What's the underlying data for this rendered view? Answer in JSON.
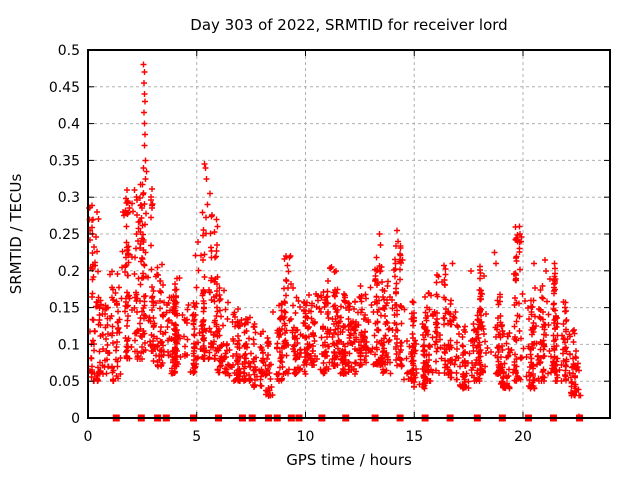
{
  "chart_data": {
    "type": "scatter",
    "title": "Day 303 of 2022, SRMTID for receiver lord",
    "xlabel": "GPS time / hours",
    "ylabel": "SRMTID / TECUs",
    "xlim": [
      0,
      24
    ],
    "ylim": [
      0,
      0.5
    ],
    "xticks": [
      0,
      5,
      10,
      15,
      20
    ],
    "xticklabels": [
      "0",
      "5",
      "10",
      "15",
      "20"
    ],
    "yticks": [
      0,
      0.05,
      0.1,
      0.15,
      0.2,
      0.25,
      0.3,
      0.35,
      0.4,
      0.45,
      0.5
    ],
    "yticklabels": [
      "0",
      "0.05",
      "0.1",
      "0.15",
      "0.2",
      "0.25",
      "0.3",
      "0.35",
      "0.4",
      "0.45",
      "0.5"
    ],
    "grid": true,
    "legend": "none",
    "marker": "plus",
    "point_color": "#ff0000",
    "grid_color": "#b0b0b0",
    "border_color": "#000000",
    "seed": 12345,
    "density_bins_comment": "Each bin is [hour_start, hour_end, y_min, y_max, approx_point_count] read from the plot; the dense red point cloud is regenerated from these observed envelopes.",
    "density_bins": [
      [
        0.0,
        0.5,
        0.05,
        0.29,
        55
      ],
      [
        0.5,
        1.0,
        0.06,
        0.16,
        45
      ],
      [
        1.0,
        1.5,
        0.05,
        0.2,
        45
      ],
      [
        1.5,
        2.0,
        0.08,
        0.31,
        60
      ],
      [
        2.0,
        2.5,
        0.08,
        0.33,
        60
      ],
      [
        2.5,
        3.0,
        0.09,
        0.33,
        65
      ],
      [
        3.0,
        3.5,
        0.07,
        0.22,
        50
      ],
      [
        3.5,
        4.0,
        0.06,
        0.17,
        45
      ],
      [
        4.0,
        4.5,
        0.07,
        0.19,
        50
      ],
      [
        4.5,
        5.0,
        0.06,
        0.16,
        45
      ],
      [
        5.0,
        5.5,
        0.08,
        0.3,
        55
      ],
      [
        5.5,
        6.0,
        0.08,
        0.28,
        55
      ],
      [
        6.0,
        6.5,
        0.06,
        0.18,
        50
      ],
      [
        6.5,
        7.0,
        0.05,
        0.15,
        50
      ],
      [
        7.0,
        7.5,
        0.05,
        0.14,
        45
      ],
      [
        7.5,
        8.0,
        0.04,
        0.13,
        40
      ],
      [
        8.0,
        8.5,
        0.03,
        0.11,
        30
      ],
      [
        8.5,
        9.0,
        0.05,
        0.16,
        40
      ],
      [
        9.0,
        9.5,
        0.06,
        0.22,
        50
      ],
      [
        9.5,
        10.0,
        0.06,
        0.17,
        50
      ],
      [
        10.0,
        10.5,
        0.07,
        0.17,
        50
      ],
      [
        10.5,
        11.0,
        0.06,
        0.18,
        50
      ],
      [
        11.0,
        11.5,
        0.07,
        0.21,
        55
      ],
      [
        11.5,
        12.0,
        0.06,
        0.17,
        50
      ],
      [
        12.0,
        12.5,
        0.06,
        0.16,
        50
      ],
      [
        12.5,
        13.0,
        0.07,
        0.18,
        50
      ],
      [
        13.0,
        13.5,
        0.07,
        0.23,
        55
      ],
      [
        13.5,
        14.0,
        0.06,
        0.19,
        50
      ],
      [
        14.0,
        14.5,
        0.07,
        0.26,
        55
      ],
      [
        14.5,
        15.0,
        0.05,
        0.16,
        45
      ],
      [
        15.0,
        15.5,
        0.04,
        0.13,
        40
      ],
      [
        15.5,
        16.0,
        0.05,
        0.17,
        50
      ],
      [
        16.0,
        16.5,
        0.06,
        0.21,
        50
      ],
      [
        16.5,
        17.0,
        0.05,
        0.16,
        45
      ],
      [
        17.0,
        17.5,
        0.04,
        0.13,
        45
      ],
      [
        17.5,
        18.0,
        0.05,
        0.14,
        45
      ],
      [
        18.0,
        18.5,
        0.06,
        0.21,
        50
      ],
      [
        18.5,
        19.0,
        0.06,
        0.17,
        45
      ],
      [
        19.0,
        19.5,
        0.04,
        0.13,
        45
      ],
      [
        19.5,
        20.0,
        0.05,
        0.26,
        55
      ],
      [
        20.0,
        20.5,
        0.04,
        0.16,
        50
      ],
      [
        20.5,
        21.0,
        0.05,
        0.18,
        50
      ],
      [
        21.0,
        21.5,
        0.06,
        0.21,
        55
      ],
      [
        21.5,
        22.0,
        0.05,
        0.16,
        50
      ],
      [
        22.0,
        22.4,
        0.03,
        0.12,
        35
      ],
      [
        22.4,
        22.7,
        0.03,
        0.08,
        12
      ]
    ],
    "outlier_points": [
      [
        0.05,
        0.285
      ],
      [
        0.07,
        0.27
      ],
      [
        0.1,
        0.255
      ],
      [
        1.6,
        0.28
      ],
      [
        1.65,
        0.275
      ],
      [
        1.8,
        0.31
      ],
      [
        1.82,
        0.295
      ],
      [
        2.55,
        0.48
      ],
      [
        2.6,
        0.47
      ],
      [
        2.57,
        0.455
      ],
      [
        2.6,
        0.44
      ],
      [
        2.62,
        0.43
      ],
      [
        2.58,
        0.415
      ],
      [
        2.6,
        0.4
      ],
      [
        2.63,
        0.385
      ],
      [
        2.6,
        0.37
      ],
      [
        2.65,
        0.35
      ],
      [
        2.55,
        0.34
      ],
      [
        2.7,
        0.335
      ],
      [
        2.9,
        0.3
      ],
      [
        2.95,
        0.285
      ],
      [
        5.35,
        0.345
      ],
      [
        5.4,
        0.34
      ],
      [
        5.45,
        0.325
      ],
      [
        5.62,
        0.305
      ],
      [
        5.5,
        0.29
      ],
      [
        5.9,
        0.27
      ],
      [
        5.95,
        0.26
      ],
      [
        9.3,
        0.22
      ],
      [
        11.2,
        0.205
      ],
      [
        13.4,
        0.25
      ],
      [
        13.45,
        0.235
      ],
      [
        14.2,
        0.255
      ],
      [
        14.25,
        0.24
      ],
      [
        16.75,
        0.21
      ],
      [
        17.6,
        0.2
      ],
      [
        18.7,
        0.225
      ],
      [
        18.75,
        0.21
      ],
      [
        19.85,
        0.26
      ],
      [
        19.87,
        0.25
      ],
      [
        19.9,
        0.24
      ],
      [
        20.5,
        0.21
      ],
      [
        21.0,
        0.215
      ],
      [
        21.05,
        0.2
      ],
      [
        22.57,
        0.002
      ]
    ],
    "zero_axis_markers_comment": "hours where solid red squares sit on the y=0 axis line",
    "zero_axis_markers": [
      1.3,
      2.45,
      3.2,
      3.6,
      4.85,
      6.0,
      7.1,
      7.55,
      8.3,
      8.7,
      9.35,
      9.7,
      10.75,
      11.85,
      13.2,
      14.35,
      15.5,
      16.65,
      17.9,
      19.05,
      20.25,
      21.4,
      22.6
    ]
  }
}
